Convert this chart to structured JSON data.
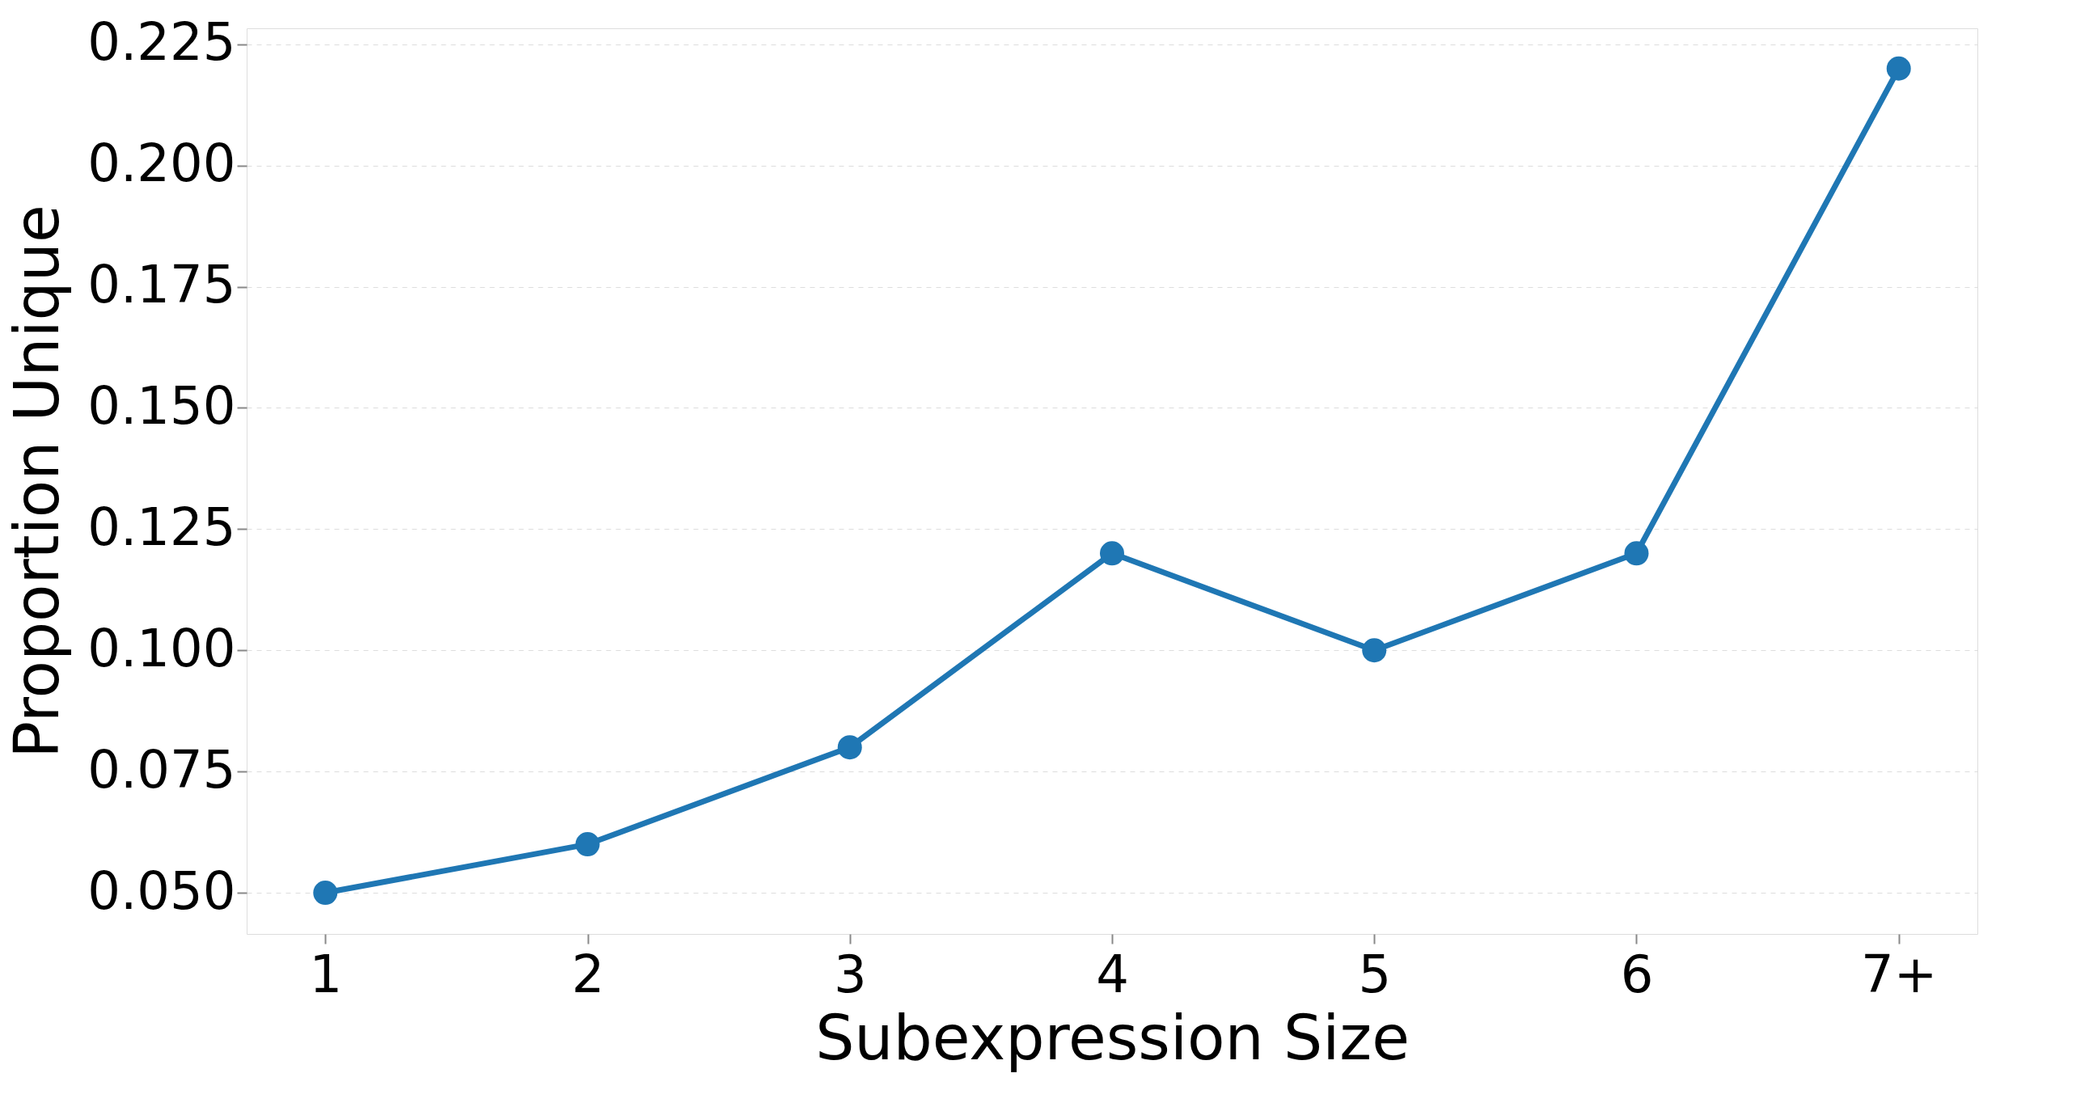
{
  "chart_data": {
    "type": "line",
    "xlabel": "Subexpression Size",
    "ylabel": "Proportion Unique",
    "categories": [
      "1",
      "2",
      "3",
      "4",
      "5",
      "6",
      "7+"
    ],
    "series": [
      {
        "color": "#1f77b4",
        "values": [
          0.05,
          0.06,
          0.08,
          0.12,
          0.1,
          0.12,
          0.22
        ]
      }
    ],
    "ylim": [
      0.0415,
      0.2283
    ],
    "yticks": [
      {
        "value": 0.05,
        "label": "0.050"
      },
      0.075,
      {
        "value": 0.1,
        "label": "0.100"
      },
      0.125,
      {
        "value": 0.15,
        "label": "0.150"
      },
      0.175,
      {
        "value": 0.2,
        "label": "0.200"
      },
      0.225
    ],
    "grid": "y",
    "marker": "circle",
    "line_style": "solid"
  }
}
